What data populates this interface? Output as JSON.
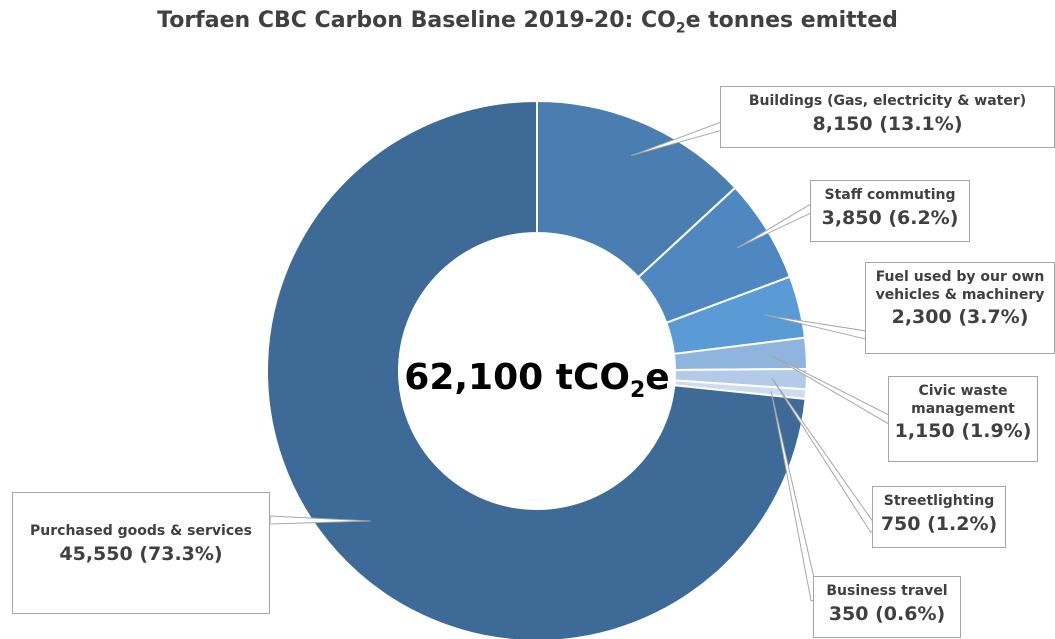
{
  "title_parts": {
    "main": "Torfaen CBC Carbon Baseline 2019-20: CO",
    "sub": "2",
    "tail": "e tonnes emitted"
  },
  "center": {
    "main": "62,100 tCO",
    "sub": "2",
    "tail": "e"
  },
  "chart_data": {
    "type": "pie",
    "donut": true,
    "title": "Torfaen CBC Carbon Baseline 2019-20: CO2e tonnes emitted",
    "total": 62100,
    "total_unit": "tCO2e",
    "categories": [
      "Buildings (Gas, electricity & water)",
      "Staff commuting",
      "Fuel used by our own vehicles & machinery",
      "Civic waste management",
      "Streetlighting",
      "Business travel",
      "Purchased goods & services"
    ],
    "values": [
      8150,
      3850,
      2300,
      1150,
      750,
      350,
      45550
    ],
    "percentages": [
      13.1,
      6.2,
      3.7,
      1.9,
      1.2,
      0.6,
      73.3
    ],
    "colors": [
      "#4a7eb0",
      "#4f87c0",
      "#5a9bd5",
      "#8fb4de",
      "#b3cbe8",
      "#cfdcef",
      "#3d6a97"
    ],
    "labels": [
      {
        "lines": [
          "Buildings (Gas, electricity & water)"
        ],
        "value": "8,150 (13.1%)"
      },
      {
        "lines": [
          "Staff commuting"
        ],
        "value": "3,850 (6.2%)"
      },
      {
        "lines": [
          "Fuel used by our own",
          "vehicles & machinery"
        ],
        "value": "2,300 (3.7%)"
      },
      {
        "lines": [
          "Civic waste",
          "management"
        ],
        "value": "1,150 (1.9%)"
      },
      {
        "lines": [
          "Streetlighting"
        ],
        "value": "750 (1.2%)"
      },
      {
        "lines": [
          "Business travel"
        ],
        "value": "350 (0.6%)"
      },
      {
        "lines": [
          "Purchased goods & services"
        ],
        "value": "45,550 (73.3%)"
      }
    ]
  }
}
